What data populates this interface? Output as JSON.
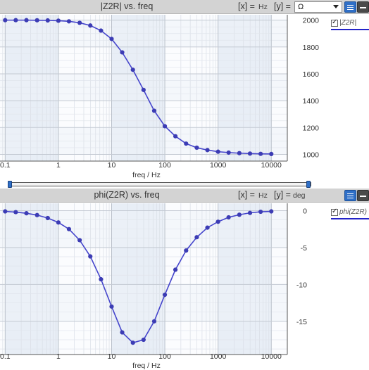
{
  "colors": {
    "series": "#4545cc",
    "marker": "#3c3cb4",
    "band": "#e8eef6",
    "legend_line": "#2323c8"
  },
  "icons": {
    "list_button": "list-icon",
    "minimize_button": "minimize-icon",
    "checkbox": "checkmark-icon"
  },
  "top_panel": {
    "title": "|Z2R| vs. freq",
    "x_axis_label": "[x] =",
    "x_unit": "Hz",
    "y_axis_label": "[y] =",
    "y_unit_select": {
      "selected": "Ω"
    },
    "legend_label": "|Z2R|"
  },
  "bottom_panel": {
    "title": "phi(Z2R) vs. freq",
    "x_axis_label": "[x] =",
    "x_unit": "Hz",
    "y_axis_label": "[y] =",
    "y_unit": "deg",
    "legend_label": "phi(Z2R)"
  },
  "splitter": {
    "range": [
      0,
      1
    ]
  },
  "chart_data": [
    {
      "type": "line",
      "title": "|Z2R| vs. freq",
      "xlabel": "freq / Hz",
      "ylabel": "",
      "xscale": "log",
      "xlim": [
        0.08,
        20000
      ],
      "ylim": [
        950,
        2040
      ],
      "grid": true,
      "legend": "right",
      "x_ticks": [
        0.1,
        1,
        10,
        100,
        1000,
        10000
      ],
      "x_tick_labels": [
        "0.1",
        "1",
        "10",
        "100",
        "1000",
        "10000"
      ],
      "y_ticks": [
        1000,
        1200,
        1400,
        1600,
        1800,
        2000
      ],
      "y_tick_labels": [
        "1000",
        "1200",
        "1400",
        "1600",
        "1800",
        "2000"
      ],
      "series": [
        {
          "name": "|Z2R|",
          "x": [
            0.1,
            0.158,
            0.251,
            0.398,
            0.631,
            1,
            1.58,
            2.51,
            3.98,
            6.31,
            10,
            15.8,
            25.1,
            39.8,
            63.1,
            100,
            158,
            251,
            398,
            631,
            1000,
            1580,
            2510,
            3980,
            6310,
            10000
          ],
          "y": [
            2000,
            2000,
            2000,
            1999,
            1998,
            1996,
            1991,
            1980,
            1960,
            1922,
            1860,
            1760,
            1630,
            1480,
            1325,
            1210,
            1135,
            1080,
            1050,
            1032,
            1020,
            1013,
            1009,
            1006,
            1004,
            1003
          ]
        }
      ]
    },
    {
      "type": "line",
      "title": "phi(Z2R) vs. freq",
      "xlabel": "freq / Hz",
      "ylabel": "",
      "xscale": "log",
      "xlim": [
        0.08,
        20000
      ],
      "ylim": [
        -19.5,
        1
      ],
      "grid": true,
      "legend": "right",
      "x_ticks": [
        0.1,
        1,
        10,
        100,
        1000,
        10000
      ],
      "x_tick_labels": [
        "0.1",
        "1",
        "10",
        "100",
        "1000",
        "10000"
      ],
      "y_ticks": [
        0,
        -5,
        -10,
        -15
      ],
      "y_tick_labels": [
        "0",
        "-5",
        "-10",
        "-15"
      ],
      "series": [
        {
          "name": "phi(Z2R)",
          "x": [
            0.1,
            0.158,
            0.251,
            0.398,
            0.631,
            1,
            1.58,
            2.51,
            3.98,
            6.31,
            10,
            15.8,
            25.1,
            39.8,
            63.1,
            100,
            158,
            251,
            398,
            631,
            1000,
            1580,
            2510,
            3980,
            6310,
            10000
          ],
          "y": [
            -0.1,
            -0.2,
            -0.35,
            -0.6,
            -1.0,
            -1.6,
            -2.5,
            -4.0,
            -6.2,
            -9.3,
            -13.0,
            -16.5,
            -17.9,
            -17.5,
            -15.0,
            -11.4,
            -8.0,
            -5.4,
            -3.6,
            -2.3,
            -1.5,
            -0.9,
            -0.55,
            -0.3,
            -0.15,
            -0.1
          ]
        }
      ]
    }
  ]
}
